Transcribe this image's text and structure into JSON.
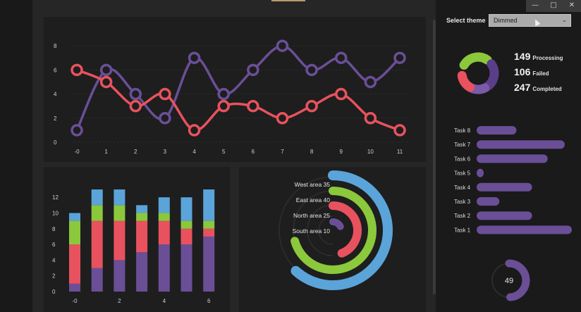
{
  "theme": {
    "label": "Select theme",
    "selected": "Dimmed"
  },
  "window": {
    "minimize_icon": "minimize-icon",
    "maximize_icon": "maximize-icon",
    "close_icon": "close-icon"
  },
  "colors": {
    "purple": "#6a4f97",
    "red": "#e8525e",
    "green": "#8bc83c",
    "blue": "#5ba4d9"
  },
  "stats": [
    {
      "value": "149",
      "label": "Processing"
    },
    {
      "value": "106",
      "label": "Failed"
    },
    {
      "value": "247",
      "label": "Completed"
    }
  ],
  "gauge": {
    "value": "49"
  },
  "chart_data": [
    {
      "type": "line",
      "x": [
        0,
        1,
        2,
        3,
        4,
        5,
        6,
        7,
        8,
        9,
        10,
        11
      ],
      "x_tick_labels": [
        "-0",
        "1",
        "2",
        "3",
        "4",
        "5",
        "6",
        "7",
        "8",
        "9",
        "10",
        "11"
      ],
      "y_ticks": [
        "0",
        "2",
        "4",
        "6",
        "8"
      ],
      "ylim": [
        0,
        9
      ],
      "series": [
        {
          "values": [
            1,
            6,
            4,
            2,
            7,
            4,
            6,
            8,
            6,
            7,
            5,
            7
          ],
          "color": "#6a4f97"
        },
        {
          "values": [
            6,
            5,
            3,
            4,
            1,
            3,
            3,
            2,
            3,
            4,
            2,
            1
          ],
          "color": "#e8525e"
        }
      ]
    },
    {
      "type": "bar",
      "stacked": true,
      "x_tick_labels": [
        "-0",
        "2",
        "4",
        "6"
      ],
      "y_ticks": [
        "0",
        "2",
        "4",
        "6",
        "8",
        "10",
        "12"
      ],
      "ylim": [
        0,
        13
      ],
      "series": [
        {
          "color": "#6a4f97",
          "values": [
            1,
            3,
            4,
            5,
            6,
            6,
            7
          ]
        },
        {
          "color": "#e8525e",
          "values": [
            5,
            6,
            5,
            4,
            3,
            2,
            1
          ]
        },
        {
          "color": "#8bc83c",
          "values": [
            3,
            2,
            2,
            1,
            1,
            1,
            1
          ]
        },
        {
          "color": "#5ba4d9",
          "values": [
            1,
            2,
            2,
            1,
            2,
            3,
            4
          ]
        }
      ]
    },
    {
      "type": "radial-bar",
      "items": [
        {
          "label": "West area 35",
          "value": 35,
          "color": "#5ba4d9"
        },
        {
          "label": "East area 40",
          "value": 40,
          "color": "#8bc83c"
        },
        {
          "label": "North area 25",
          "value": 25,
          "color": "#e8525e"
        },
        {
          "label": "South area 10",
          "value": 10,
          "color": "#6a4f97"
        }
      ]
    },
    {
      "type": "bar",
      "orientation": "horizontal",
      "categories": [
        "Task 8",
        "Task 7",
        "Task 6",
        "Task 5",
        "Task 4",
        "Task 3",
        "Task 2",
        "Task 1"
      ],
      "values": [
        28,
        62,
        50,
        5,
        39,
        16,
        39,
        67
      ],
      "xlim": [
        0,
        67
      ],
      "color": "#6a4f97"
    }
  ]
}
